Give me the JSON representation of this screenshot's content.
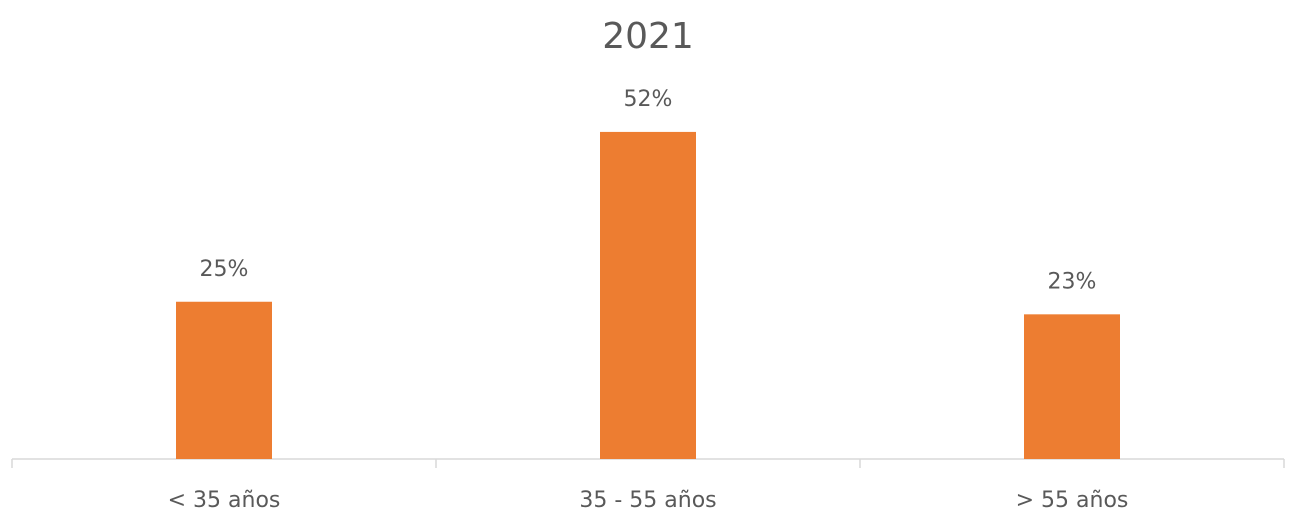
{
  "chart_data": {
    "type": "bar",
    "title": "2021",
    "categories": [
      "< 35 años",
      "35 - 55 años",
      "> 55 años"
    ],
    "values": [
      25,
      52,
      23
    ],
    "value_labels": [
      "25%",
      "52%",
      "23%"
    ],
    "color": "#ed7d31"
  }
}
